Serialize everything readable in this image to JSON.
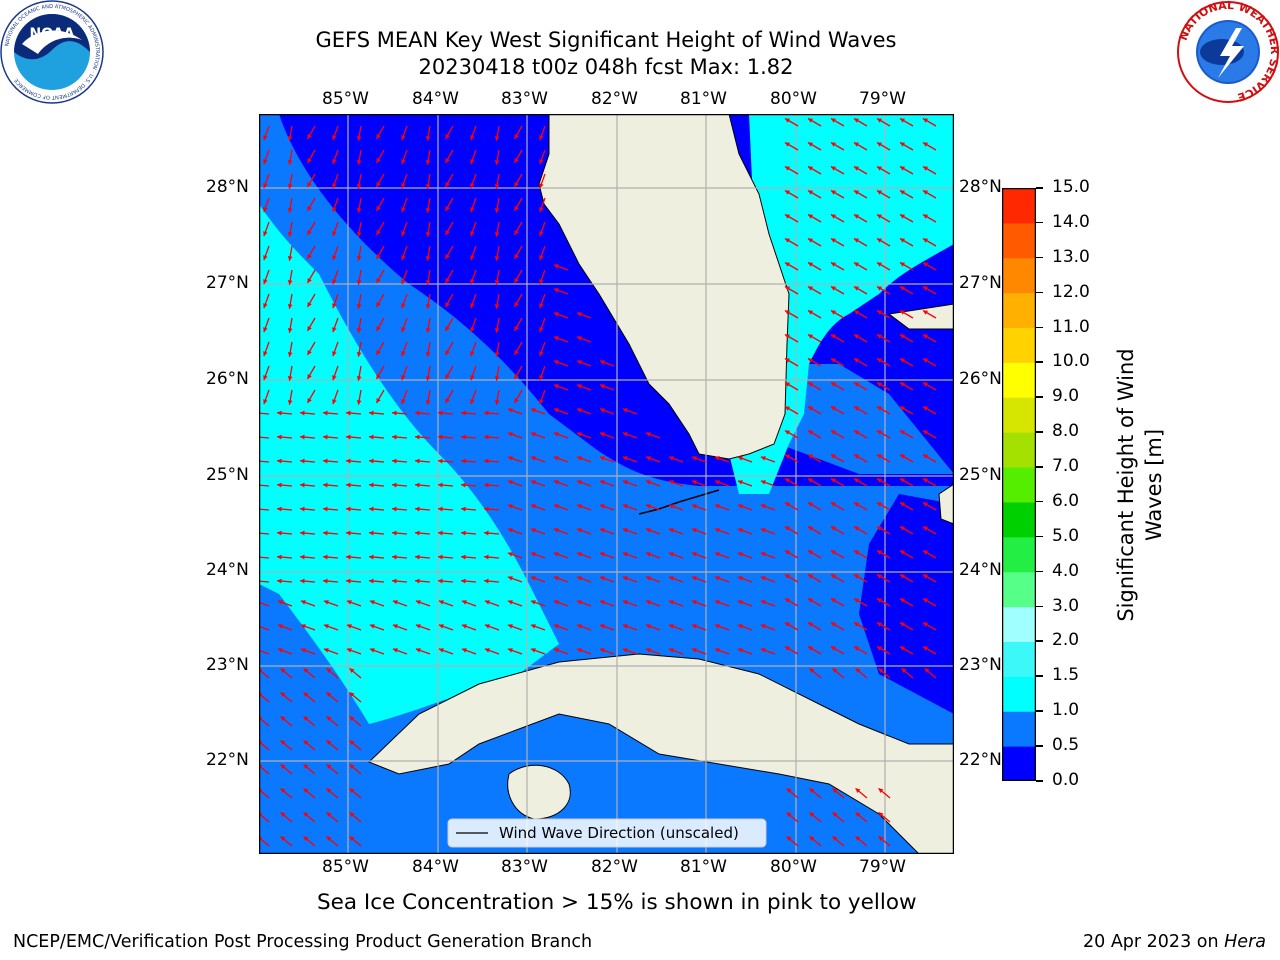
{
  "header": {
    "title_line1": "GEFS MEAN Key West Significant Height of Wind Waves",
    "title_line2": "20230418 t00z 048h fcst   Max: 1.82"
  },
  "logos": {
    "noaa": {
      "text": "NOAA",
      "ring_text": "NATIONAL OCEANIC AND ATMOSPHERIC ADMINISTRATION · U.S. DEPARTMENT OF COMMERCE"
    },
    "nws": {
      "ring_text": "NATIONAL WEATHER SERVICE"
    }
  },
  "map": {
    "lon_labels": [
      "85°W",
      "84°W",
      "83°W",
      "82°W",
      "81°W",
      "80°W",
      "79°W"
    ],
    "lat_labels": [
      "28°N",
      "27°N",
      "26°N",
      "25°N",
      "24°N",
      "23°N",
      "22°N"
    ],
    "legend_label": "Wind Wave Direction (unscaled)",
    "arrow_color": "#ff0000",
    "land_color": "#efefdf"
  },
  "colorbar": {
    "label": "Significant Height of Wind Waves [m]",
    "label_line1": "Significant Height of Wind",
    "label_line2": "Waves [m]",
    "ticks": [
      "0.0",
      "0.5",
      "1.0",
      "1.5",
      "2.0",
      "3.0",
      "4.0",
      "5.0",
      "6.0",
      "7.0",
      "8.0",
      "9.0",
      "10.0",
      "11.0",
      "12.0",
      "13.0",
      "14.0",
      "15.0"
    ],
    "colors": [
      "#0000ff",
      "#0a78ff",
      "#00ffff",
      "#3cf8f8",
      "#a0ffff",
      "#55ff88",
      "#22ee44",
      "#00d000",
      "#55ee00",
      "#a4e000",
      "#d6e600",
      "#ffff00",
      "#ffd200",
      "#ffb000",
      "#ff8800",
      "#ff5a00",
      "#ff2800"
    ]
  },
  "caption": "Sea Ice Concentration > 15% is shown in pink to yellow",
  "footer": {
    "left": "NCEP/EMC/Verification Post Processing Product Generation Branch",
    "date": "20 Apr 2023 on ",
    "host": "Hera"
  }
}
